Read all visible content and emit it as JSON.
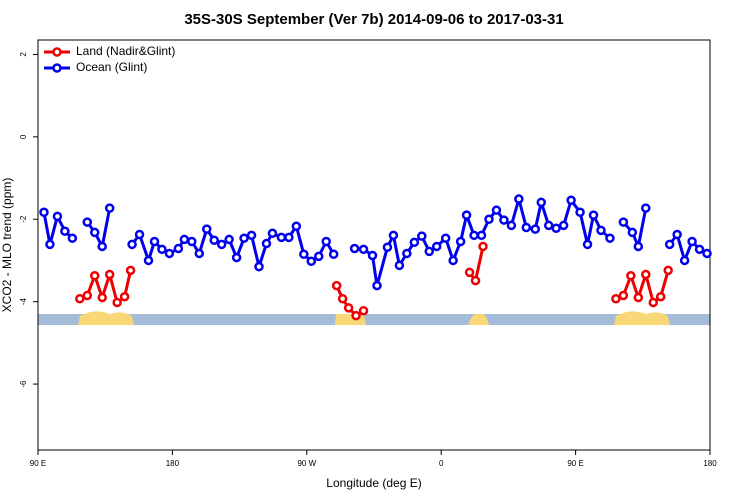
{
  "chart_data": {
    "type": "line",
    "title": "35S-30S September (Ver 7b)   2014-09-06 to 2017-03-31",
    "x_label": "Longitude (deg E)",
    "y_label": "XCO2 - MLO trend (ppm)",
    "xlim": [
      90,
      540
    ],
    "ylim": [
      -7.6,
      2.35
    ],
    "xticks": [
      {
        "value": 90,
        "label": "90 E"
      },
      180,
      {
        "value": 270,
        "label": "90 W"
      },
      {
        "value": 360,
        "label": "0"
      },
      {
        "value": 450,
        "label": "90 E"
      },
      {
        "value": 540,
        "label": "180"
      }
    ],
    "yticks": [
      -6,
      -4,
      -2,
      0,
      2
    ],
    "legend": "topleft",
    "series": [
      {
        "name": "Land (Nadir&Glint)",
        "color": "#ee0000",
        "x": [
          118,
          123,
          128,
          133,
          138,
          143,
          148,
          152,
          200,
          290,
          294,
          298,
          303,
          308,
          340,
          379,
          383,
          388,
          450,
          477,
          482,
          487,
          492,
          497,
          502,
          507,
          512
        ],
        "values": [
          -3.93,
          -3.85,
          -3.37,
          -3.9,
          -3.34,
          -4.02,
          -3.88,
          -3.24,
          null,
          -3.61,
          -3.93,
          -4.15,
          -4.34,
          -4.22,
          null,
          -3.29,
          -3.49,
          -2.66,
          null,
          -3.93,
          -3.85,
          -3.37,
          -3.9,
          -3.34,
          -4.02,
          -3.88,
          -3.24
        ]
      },
      {
        "name": "Ocean (Glint)",
        "color": "#0000ee",
        "x": [
          94,
          98,
          103,
          108,
          113,
          118,
          123,
          128,
          133,
          138,
          143,
          153,
          158,
          164,
          168,
          173,
          178,
          184,
          188,
          193,
          198,
          203,
          208,
          213,
          218,
          223,
          228,
          233,
          238,
          243,
          247,
          253,
          258,
          263,
          268,
          273,
          278,
          283,
          288,
          298,
          302,
          308,
          314,
          317,
          324,
          328,
          332,
          337,
          342,
          347,
          352,
          357,
          363,
          368,
          373,
          377,
          382,
          387,
          392,
          397,
          402,
          407,
          412,
          417,
          423,
          427,
          432,
          437,
          442,
          447,
          453,
          458,
          462,
          467,
          473,
          478,
          482,
          488,
          492,
          497,
          503,
          513,
          518,
          523,
          528,
          533,
          538
        ],
        "values": [
          -1.83,
          -2.61,
          -1.93,
          -2.29,
          -2.46,
          null,
          -2.07,
          -2.32,
          -2.66,
          -1.73,
          null,
          -2.61,
          -2.37,
          -3.0,
          -2.54,
          -2.73,
          -2.83,
          -2.71,
          -2.49,
          -2.54,
          -2.83,
          -2.24,
          -2.51,
          -2.61,
          -2.49,
          -2.93,
          -2.46,
          -2.39,
          -3.15,
          -2.59,
          -2.34,
          -2.44,
          -2.44,
          -2.17,
          -2.85,
          -3.02,
          -2.9,
          -2.54,
          -2.85,
          null,
          -2.71,
          -2.73,
          -2.88,
          -3.61,
          -2.68,
          -2.39,
          -3.12,
          -2.83,
          -2.56,
          -2.41,
          -2.78,
          -2.66,
          -2.46,
          -3.0,
          -2.54,
          -1.9,
          -2.39,
          -2.39,
          -2.0,
          -1.78,
          -2.02,
          -2.15,
          -1.51,
          -2.2,
          -2.24,
          -1.59,
          -2.15,
          -2.22,
          -2.15,
          -1.54,
          -1.83,
          -2.61,
          -1.9,
          -2.27,
          -2.46,
          null,
          -2.07,
          -2.32,
          -2.66,
          -1.73,
          null,
          -2.61,
          -2.37,
          -3.0,
          -2.54,
          -2.73,
          -2.83
        ]
      }
    ]
  }
}
